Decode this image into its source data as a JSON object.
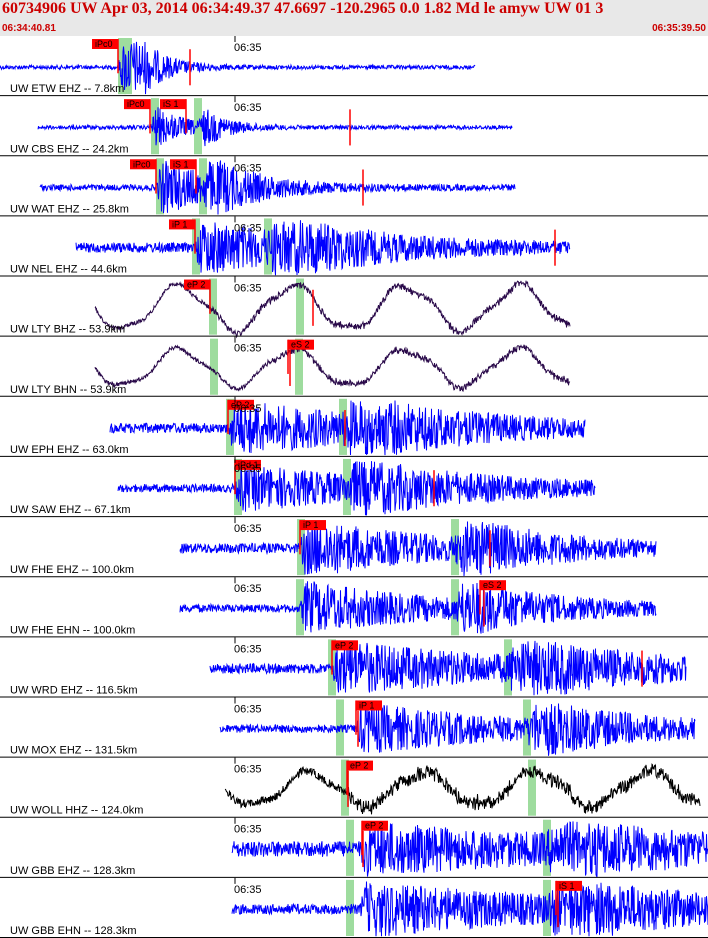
{
  "header": {
    "title": "60734906 UW Apr 03, 2014 06:34:49.37    47.6697 -120.2965  0.0 1.82 Md le amyw UW 01   3",
    "start_time": "06:34:40.81",
    "end_time": "06:35:39.50"
  },
  "colors": {
    "trace_blue": "#0000ff",
    "trace_long_period": "#2a0a4a",
    "trace_black": "#000000",
    "pick_red": "#ff0000",
    "pick_marker_green": "#9edc9e"
  },
  "chart_data": {
    "type": "line",
    "title": "",
    "x_tick_label": "06:35",
    "traces": [
      {
        "label": "UW ETW EHZ -- 7.8km",
        "color": "#0000ff",
        "style": "hf",
        "start": 0,
        "end": 475,
        "onset": 118,
        "amp": 34,
        "decay": 28,
        "noise": 2,
        "picks": [
          {
            "text": "iPc0",
            "x": 118,
            "dir": "left"
          }
        ],
        "greens": [
          122,
          128
        ],
        "marks": [
          190
        ]
      },
      {
        "label": "UW CBS EHZ -- 24.2km",
        "color": "#0000ff",
        "style": "hf",
        "start": 38,
        "end": 512,
        "onset": 150,
        "amp": 24,
        "decay": 30,
        "noise": 2,
        "picks": [
          {
            "text": "iPc0",
            "x": 150,
            "dir": "left"
          },
          {
            "text": "iS 1",
            "x": 186,
            "dir": "left"
          }
        ],
        "greens": [
          155,
          198
        ],
        "marks": [
          350
        ]
      },
      {
        "label": "UW WAT EHZ -- 25.8km",
        "color": "#0000ff",
        "style": "hf",
        "start": 40,
        "end": 515,
        "onset": 156,
        "amp": 28,
        "decay": 60,
        "noise": 3,
        "picks": [
          {
            "text": "iPc0",
            "x": 156,
            "dir": "left"
          },
          {
            "text": "iS 1",
            "x": 196,
            "dir": "left"
          }
        ],
        "greens": [
          160,
          203
        ],
        "marks": [
          363
        ]
      },
      {
        "label": "UW NEL EHZ -- 44.6km",
        "color": "#0000ff",
        "style": "hf",
        "start": 76,
        "end": 570,
        "onset": 195,
        "amp": 26,
        "decay": 120,
        "noise": 5,
        "picks": [
          {
            "text": "iP 1",
            "x": 195,
            "dir": "left"
          }
        ],
        "greens": [
          196,
          268
        ],
        "marks": [
          555
        ]
      },
      {
        "label": "UW LTY BHZ -- 53.9km",
        "color": "#2a0a4a",
        "style": "lp",
        "start": 95,
        "end": 570,
        "onset": 210,
        "amp": 24,
        "decay": 0,
        "noise": 2,
        "picks": [
          {
            "text": "eP 2",
            "x": 210,
            "dir": "left"
          }
        ],
        "greens": [
          213,
          300
        ],
        "marks": [
          313
        ]
      },
      {
        "label": "UW LTY BHN -- 53.9km",
        "color": "#2a0a4a",
        "style": "lp",
        "start": 95,
        "end": 570,
        "onset": 265,
        "amp": 20,
        "decay": 0,
        "noise": 2,
        "picks": [
          {
            "text": "eS 2",
            "x": 288,
            "dir": "right"
          }
        ],
        "greens": [
          214,
          299
        ],
        "marks": [
          290
        ]
      },
      {
        "label": "UW EPH EHZ -- 63.0km",
        "color": "#0000ff",
        "style": "hf",
        "start": 110,
        "end": 585,
        "onset": 228,
        "amp": 26,
        "decay": 150,
        "noise": 5,
        "picks": [
          {
            "text": "eP 2",
            "x": 228,
            "dir": "right"
          }
        ],
        "greens": [
          230,
          343
        ],
        "marks": [
          345
        ]
      },
      {
        "label": "UW SAW EHZ -- 67.1km",
        "color": "#0000ff",
        "style": "hf",
        "start": 118,
        "end": 595,
        "onset": 235,
        "amp": 22,
        "decay": 160,
        "noise": 4,
        "picks": [
          {
            "text": "iPd 1",
            "x": 235,
            "dir": "right"
          }
        ],
        "greens": [
          238,
          347
        ],
        "marks": [
          434
        ]
      },
      {
        "label": "UW FHE EHZ -- 100.0km",
        "color": "#0000ff",
        "style": "hf",
        "start": 180,
        "end": 656,
        "onset": 300,
        "amp": 28,
        "decay": 120,
        "noise": 5,
        "picks": [
          {
            "text": "iP 1",
            "x": 300,
            "dir": "right"
          }
        ],
        "greens": [
          301,
          455
        ],
        "marks": [
          490
        ]
      },
      {
        "label": "UW FHE EHN -- 100.0km",
        "color": "#0000ff",
        "style": "hf",
        "start": 180,
        "end": 656,
        "onset": 300,
        "amp": 26,
        "decay": 120,
        "noise": 4,
        "picks": [
          {
            "text": "eS 2",
            "x": 480,
            "dir": "right"
          }
        ],
        "greens": [
          300,
          455
        ],
        "marks": [
          484
        ]
      },
      {
        "label": "UW WRD EHZ -- 116.5km",
        "color": "#0000ff",
        "style": "hf",
        "start": 210,
        "end": 686,
        "onset": 332,
        "amp": 26,
        "decay": 170,
        "noise": 5,
        "picks": [
          {
            "text": "eP 2",
            "x": 332,
            "dir": "right"
          }
        ],
        "greens": [
          332,
          508
        ],
        "marks": [
          642
        ]
      },
      {
        "label": "UW MOX EHZ -- 131.5km",
        "color": "#0000ff",
        "style": "hf",
        "start": 220,
        "end": 695,
        "onset": 356,
        "amp": 24,
        "decay": 150,
        "noise": 4,
        "picks": [
          {
            "text": "iP 1",
            "x": 356,
            "dir": "right"
          }
        ],
        "greens": [
          340,
          527
        ],
        "marks": [
          358
        ]
      },
      {
        "label": "UW WOLL HHZ -- 124.0km",
        "color": "#000000",
        "style": "lp",
        "start": 225,
        "end": 700,
        "onset": 345,
        "amp": 18,
        "decay": 0,
        "noise": 4,
        "picks": [
          {
            "text": "eP 2",
            "x": 347,
            "dir": "right"
          }
        ],
        "greens": [
          345,
          532
        ],
        "marks": [
          348
        ]
      },
      {
        "label": "UW GBB EHZ -- 128.3km",
        "color": "#0000ff",
        "style": "hf",
        "start": 232,
        "end": 708,
        "onset": 360,
        "amp": 22,
        "decay": 200,
        "noise": 8,
        "picks": [
          {
            "text": "eP 2",
            "x": 362,
            "dir": "right"
          }
        ],
        "greens": [
          350,
          547
        ],
        "marks": [
          363
        ]
      },
      {
        "label": "UW GBB EHN -- 128.3km",
        "color": "#0000ff",
        "style": "hf",
        "start": 232,
        "end": 708,
        "onset": 360,
        "amp": 26,
        "decay": 200,
        "noise": 5,
        "picks": [
          {
            "text": "iS 1",
            "x": 556,
            "dir": "right"
          }
        ],
        "greens": [
          350,
          547
        ],
        "marks": [
          558
        ]
      }
    ]
  }
}
